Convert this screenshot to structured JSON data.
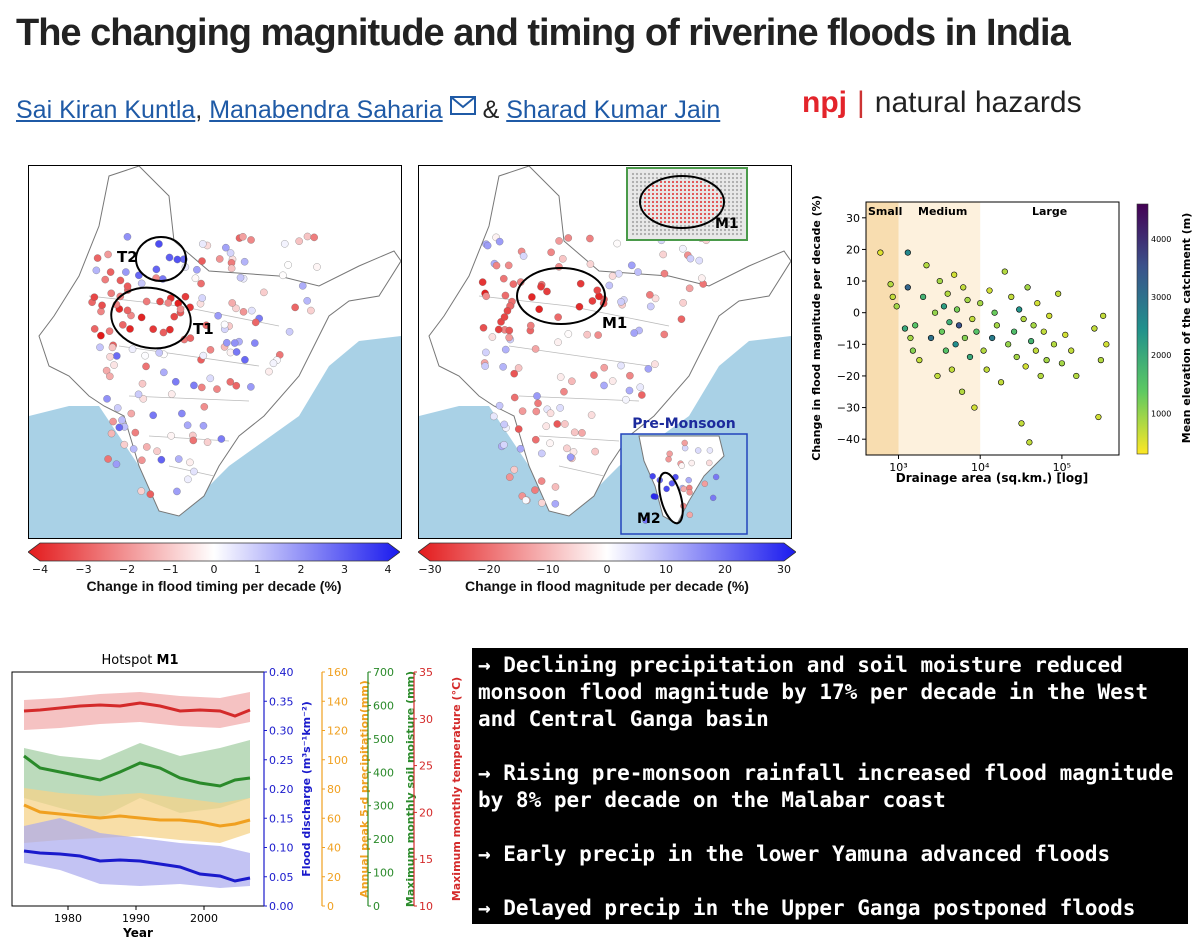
{
  "title": "The changing magnitude and timing of riverine floods in India",
  "authors": {
    "names": [
      "Sai Kiran Kuntla",
      "Manabendra Saharia",
      "Sharad Kumar Jain"
    ],
    "comma": ",",
    "amp": "&"
  },
  "journal": {
    "npj": "npj",
    "separator": "|",
    "name": "natural hazards"
  },
  "map_timing": {
    "labels": [
      "T2",
      "T1"
    ],
    "colorbar": {
      "ticks": [
        "−4",
        "−3",
        "−2",
        "−1",
        "0",
        "1",
        "2",
        "3",
        "4"
      ],
      "title": "Change in flood timing per decade (%)"
    }
  },
  "map_magnitude": {
    "labels": [
      "M1",
      "M1",
      "M2"
    ],
    "inset_title": "Pre-Monsoon",
    "colorbar": {
      "ticks": [
        "−30",
        "−20",
        "−10",
        "0",
        "10",
        "20",
        "30"
      ],
      "title": "Change in flood magnitude per decade (%)"
    }
  },
  "scatter": {
    "region_labels": [
      "Small",
      "Medium",
      "Large"
    ],
    "ylabel": "Change in flood magnitude per decade (%)",
    "xlabel": "Drainage area (sq.km.) [log]",
    "yticks": [
      "30",
      "20",
      "10",
      "0",
      "−10",
      "−20",
      "−30",
      "−40"
    ],
    "xticks": [
      "10³",
      "10⁴",
      "10⁵"
    ],
    "colorbar_label": "Mean elevation of the catchment (m)",
    "colorbar_ticks": [
      "4000",
      "3000",
      "2000",
      "1000"
    ]
  },
  "hotspot": {
    "title_prefix": "Hotspot ",
    "title_bold": "M1",
    "xlabel": "Year",
    "xticks": [
      "1980",
      "1990",
      "2000"
    ],
    "axes": [
      {
        "label": "Flood discharge (m³s⁻¹km⁻²)",
        "color": "#1a1acc",
        "ticks": [
          "0.40",
          "0.35",
          "0.30",
          "0.25",
          "0.20",
          "0.15",
          "0.10",
          "0.05",
          "0.00"
        ]
      },
      {
        "label": "Annual peak 5-d precipitation(mm)",
        "color": "#f0a020",
        "ticks": [
          "160",
          "140",
          "120",
          "100",
          "80",
          "60",
          "40",
          "20",
          "0"
        ]
      },
      {
        "label": "Maximum monthly soil moisture (mm)",
        "color": "#2a8a2a",
        "ticks": [
          "700",
          "600",
          "500",
          "400",
          "300",
          "200",
          "100",
          "0"
        ]
      },
      {
        "label": "Maximum monthly temperature (°C)",
        "color": "#d42a2a",
        "ticks": [
          "35",
          "30",
          "25",
          "20",
          "15",
          "10"
        ]
      }
    ]
  },
  "summary": [
    "→ Declining precipitation and soil moisture reduced monsoon flood magnitude by 17% per decade in the West and Central Ganga basin",
    "→ Rising pre-monsoon rainfall increased flood magnitude by 8% per decade on the Malabar coast",
    "→ Early precip in the lower Yamuna advanced floods",
    "→ Delayed precip in the Upper Ganga postponed floods"
  ],
  "chart_data": {
    "type": "scatter",
    "title": "",
    "xlabel": "Drainage area (sq.km.) [log]",
    "ylabel": "Change in flood magnitude per decade (%)",
    "xscale": "log",
    "xlim": [
      400,
      500000
    ],
    "ylim": [
      -45,
      35
    ],
    "colorbar": {
      "label": "Mean elevation of the catchment (m)",
      "range": [
        300,
        4600
      ]
    },
    "points": [
      [
        600,
        19,
        500
      ],
      [
        800,
        9,
        800
      ],
      [
        850,
        5,
        700
      ],
      [
        950,
        2,
        900
      ],
      [
        1200,
        -5,
        2000
      ],
      [
        1300,
        8,
        3200
      ],
      [
        1400,
        -8,
        900
      ],
      [
        1500,
        -12,
        1100
      ],
      [
        1300,
        19,
        2600
      ],
      [
        1600,
        -4,
        1500
      ],
      [
        1800,
        -15,
        700
      ],
      [
        2000,
        5,
        1800
      ],
      [
        2200,
        15,
        800
      ],
      [
        2500,
        -8,
        3000
      ],
      [
        2800,
        0,
        1000
      ],
      [
        3000,
        -20,
        700
      ],
      [
        3200,
        10,
        900
      ],
      [
        3400,
        -6,
        1300
      ],
      [
        3600,
        2,
        2200
      ],
      [
        3800,
        -12,
        1500
      ],
      [
        4000,
        6,
        800
      ],
      [
        4200,
        -3,
        1900
      ],
      [
        4500,
        -18,
        700
      ],
      [
        4800,
        12,
        600
      ],
      [
        5000,
        -10,
        2500
      ],
      [
        5200,
        1,
        1200
      ],
      [
        5500,
        -4,
        3500
      ],
      [
        6000,
        -25,
        800
      ],
      [
        6200,
        8,
        700
      ],
      [
        6500,
        -8,
        1100
      ],
      [
        7000,
        4,
        900
      ],
      [
        7500,
        -14,
        2000
      ],
      [
        8000,
        -2,
        700
      ],
      [
        8500,
        -30,
        600
      ],
      [
        9000,
        -6,
        1500
      ],
      [
        10000,
        3,
        900
      ],
      [
        11000,
        -12,
        800
      ],
      [
        12000,
        -18,
        700
      ],
      [
        13000,
        7,
        600
      ],
      [
        14000,
        -8,
        2800
      ],
      [
        15000,
        0,
        1300
      ],
      [
        16000,
        -4,
        900
      ],
      [
        18000,
        -22,
        700
      ],
      [
        20000,
        13,
        800
      ],
      [
        22000,
        -10,
        1000
      ],
      [
        24000,
        5,
        700
      ],
      [
        26000,
        -6,
        1600
      ],
      [
        28000,
        -14,
        900
      ],
      [
        30000,
        1,
        2400
      ],
      [
        32000,
        -35,
        700
      ],
      [
        34000,
        -2,
        800
      ],
      [
        36000,
        -17,
        600
      ],
      [
        38000,
        8,
        900
      ],
      [
        40000,
        -41,
        700
      ],
      [
        42000,
        -9,
        1800
      ],
      [
        45000,
        -4,
        900
      ],
      [
        48000,
        -12,
        700
      ],
      [
        50000,
        3,
        600
      ],
      [
        55000,
        -20,
        800
      ],
      [
        60000,
        -6,
        700
      ],
      [
        65000,
        -15,
        900
      ],
      [
        70000,
        -1,
        600
      ],
      [
        80000,
        -10,
        800
      ],
      [
        90000,
        6,
        700
      ],
      [
        100000,
        -16,
        900
      ],
      [
        110000,
        -7,
        600
      ],
      [
        130000,
        -12,
        700
      ],
      [
        150000,
        -20,
        800
      ],
      [
        250000,
        -5,
        700
      ],
      [
        280000,
        -33,
        600
      ],
      [
        300000,
        -15,
        800
      ],
      [
        320000,
        -1,
        700
      ],
      [
        350000,
        -10,
        600
      ]
    ]
  }
}
